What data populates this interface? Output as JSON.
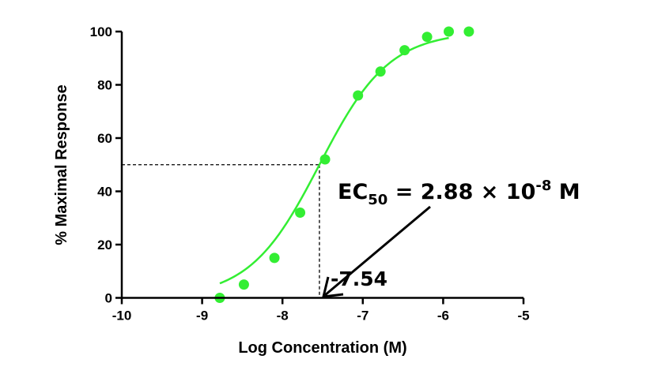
{
  "chart_data": {
    "type": "scatter",
    "xlabel": "Log Concentration (M)",
    "ylabel": "% Maximal Response",
    "xlim": [
      -10,
      -5
    ],
    "ylim": [
      0,
      100
    ],
    "xticks": [
      "-10",
      "-9",
      "-8",
      "-7",
      "-6",
      "-5"
    ],
    "yticks": [
      "0",
      "20",
      "40",
      "60",
      "80",
      "100"
    ],
    "points": [
      {
        "x": -8.78,
        "y": 0
      },
      {
        "x": -8.48,
        "y": 5
      },
      {
        "x": -8.1,
        "y": 15
      },
      {
        "x": -7.78,
        "y": 32
      },
      {
        "x": -7.47,
        "y": 52
      },
      {
        "x": -7.06,
        "y": 76
      },
      {
        "x": -6.78,
        "y": 85
      },
      {
        "x": -6.48,
        "y": 93
      },
      {
        "x": -6.2,
        "y": 98
      },
      {
        "x": -5.93,
        "y": 100
      },
      {
        "x": -5.68,
        "y": 100
      }
    ],
    "fit": {
      "model": "sigmoidal dose-response",
      "bottom": 0,
      "top": 100,
      "logEC50": -7.54,
      "hill": 1.0
    },
    "curve_range": [
      -8.78,
      -5.93
    ],
    "series_color": "#33ee33",
    "grid": false,
    "ec50_guide": {
      "x": -7.54,
      "y": 50
    },
    "annotations": {
      "ec50_prefix": "EC",
      "ec50_subscript": "50",
      "ec50_value": " = 2.88 × 10",
      "ec50_exponent": "-8",
      "ec50_unit": " M",
      "log_value": "-7.54"
    }
  }
}
